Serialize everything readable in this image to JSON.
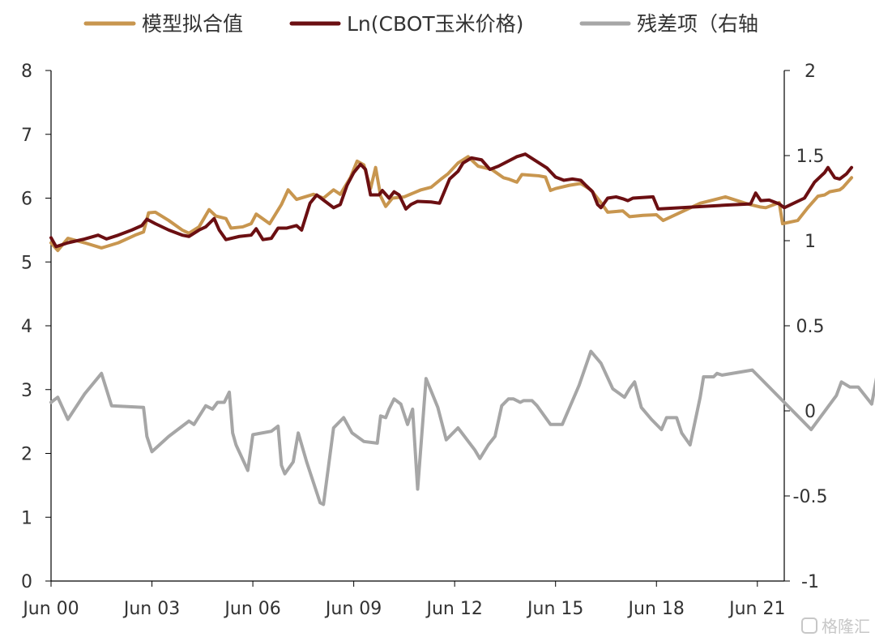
{
  "chart_data": {
    "type": "line",
    "legend": {
      "placement": "top",
      "items": [
        {
          "label": "模型拟合值",
          "color": "#c8964f"
        },
        {
          "label": "Ln(CBOT玉米价格)",
          "color": "#6b0f12"
        },
        {
          "label": "残差项（右轴",
          "color": "#a6a6a6"
        }
      ]
    },
    "x_axis": {
      "start_year": 2000.0,
      "end_year": 2021.8,
      "ticks": [
        {
          "year": 2000.0,
          "label": "Jun 00"
        },
        {
          "year": 2003.0,
          "label": "Jun 03"
        },
        {
          "year": 2006.0,
          "label": "Jun 06"
        },
        {
          "year": 2009.0,
          "label": "Jun 09"
        },
        {
          "year": 2012.0,
          "label": "Jun 12"
        },
        {
          "year": 2015.0,
          "label": "Jun 15"
        },
        {
          "year": 2018.0,
          "label": "Jun 18"
        },
        {
          "year": 2021.0,
          "label": "Jun 21"
        }
      ]
    },
    "y_axis_left": {
      "min": 0,
      "max": 8,
      "ticks": [
        "0",
        "1",
        "2",
        "3",
        "4",
        "5",
        "6",
        "7",
        "8"
      ]
    },
    "y_axis_right": {
      "min": -1,
      "max": 2,
      "ticks": [
        {
          "value": -1,
          "label": "-1"
        },
        {
          "value": -0.5,
          "label": "-0.5"
        },
        {
          "value": 0,
          "label": "0"
        },
        {
          "value": 0.5,
          "label": "0.5"
        },
        {
          "value": 1,
          "label": "1"
        },
        {
          "value": 1.5,
          "label": "1.5"
        },
        {
          "value": 2,
          "label": "2"
        }
      ]
    },
    "series": [
      {
        "name": "模型拟合值",
        "axis": "left",
        "color": "#c8964f",
        "points": [
          [
            2000.0,
            5.3
          ],
          [
            2000.2,
            5.18
          ],
          [
            2000.5,
            5.37
          ],
          [
            2001.0,
            5.3
          ],
          [
            2001.5,
            5.22
          ],
          [
            2002.0,
            5.3
          ],
          [
            2002.5,
            5.42
          ],
          [
            2002.75,
            5.47
          ],
          [
            2002.9,
            5.77
          ],
          [
            2003.1,
            5.78
          ],
          [
            2003.5,
            5.65
          ],
          [
            2003.9,
            5.5
          ],
          [
            2004.1,
            5.45
          ],
          [
            2004.4,
            5.55
          ],
          [
            2004.7,
            5.82
          ],
          [
            2004.9,
            5.72
          ],
          [
            2005.2,
            5.68
          ],
          [
            2005.35,
            5.53
          ],
          [
            2005.7,
            5.55
          ],
          [
            2005.95,
            5.6
          ],
          [
            2006.1,
            5.75
          ],
          [
            2006.5,
            5.6
          ],
          [
            2006.85,
            5.9
          ],
          [
            2007.05,
            6.13
          ],
          [
            2007.3,
            5.98
          ],
          [
            2007.8,
            6.06
          ],
          [
            2008.1,
            6.0
          ],
          [
            2008.4,
            6.13
          ],
          [
            2008.6,
            6.06
          ],
          [
            2008.9,
            6.32
          ],
          [
            2009.1,
            6.58
          ],
          [
            2009.3,
            6.52
          ],
          [
            2009.5,
            6.15
          ],
          [
            2009.65,
            6.48
          ],
          [
            2009.8,
            6.03
          ],
          [
            2009.95,
            5.87
          ],
          [
            2010.15,
            6.0
          ],
          [
            2010.5,
            6.02
          ],
          [
            2011.0,
            6.13
          ],
          [
            2011.3,
            6.17
          ],
          [
            2011.6,
            6.3
          ],
          [
            2011.8,
            6.38
          ],
          [
            2012.1,
            6.55
          ],
          [
            2012.4,
            6.65
          ],
          [
            2012.7,
            6.5
          ],
          [
            2013.1,
            6.45
          ],
          [
            2013.45,
            6.32
          ],
          [
            2013.6,
            6.3
          ],
          [
            2013.85,
            6.25
          ],
          [
            2014.0,
            6.37
          ],
          [
            2014.5,
            6.35
          ],
          [
            2014.7,
            6.33
          ],
          [
            2014.85,
            6.12
          ],
          [
            2015.0,
            6.15
          ],
          [
            2015.4,
            6.2
          ],
          [
            2015.75,
            6.23
          ],
          [
            2016.05,
            6.13
          ],
          [
            2016.35,
            5.93
          ],
          [
            2016.55,
            5.78
          ],
          [
            2017.0,
            5.8
          ],
          [
            2017.2,
            5.71
          ],
          [
            2017.6,
            5.73
          ],
          [
            2018.0,
            5.74
          ],
          [
            2018.2,
            5.65
          ],
          [
            2019.3,
            5.92
          ],
          [
            2020.05,
            6.02
          ],
          [
            2020.7,
            5.91
          ],
          [
            2021.1,
            5.86
          ],
          [
            2021.25,
            5.85
          ],
          [
            2021.65,
            5.93
          ],
          [
            2021.75,
            5.6
          ],
          [
            2022.2,
            5.65
          ],
          [
            2022.5,
            5.85
          ],
          [
            2022.8,
            6.03
          ],
          [
            2023.0,
            6.05
          ],
          [
            2023.15,
            6.1
          ],
          [
            2023.45,
            6.13
          ],
          [
            2023.55,
            6.17
          ],
          [
            2023.8,
            6.32
          ]
        ]
      },
      {
        "name": "Ln(CBOT玉米价格)",
        "axis": "left",
        "color": "#6b0f12",
        "points": [
          [
            2000.0,
            5.38
          ],
          [
            2000.15,
            5.24
          ],
          [
            2000.5,
            5.3
          ],
          [
            2001.0,
            5.36
          ],
          [
            2001.4,
            5.42
          ],
          [
            2001.65,
            5.36
          ],
          [
            2002.0,
            5.42
          ],
          [
            2002.4,
            5.5
          ],
          [
            2002.7,
            5.57
          ],
          [
            2002.85,
            5.67
          ],
          [
            2003.1,
            5.6
          ],
          [
            2003.5,
            5.5
          ],
          [
            2003.9,
            5.42
          ],
          [
            2004.1,
            5.4
          ],
          [
            2004.4,
            5.5
          ],
          [
            2004.6,
            5.55
          ],
          [
            2004.85,
            5.68
          ],
          [
            2005.0,
            5.5
          ],
          [
            2005.2,
            5.35
          ],
          [
            2005.6,
            5.4
          ],
          [
            2005.95,
            5.42
          ],
          [
            2006.1,
            5.52
          ],
          [
            2006.3,
            5.35
          ],
          [
            2006.55,
            5.37
          ],
          [
            2006.75,
            5.53
          ],
          [
            2007.0,
            5.53
          ],
          [
            2007.3,
            5.57
          ],
          [
            2007.45,
            5.5
          ],
          [
            2007.7,
            5.92
          ],
          [
            2007.9,
            6.05
          ],
          [
            2008.1,
            5.97
          ],
          [
            2008.4,
            5.85
          ],
          [
            2008.6,
            5.9
          ],
          [
            2008.8,
            6.2
          ],
          [
            2009.0,
            6.4
          ],
          [
            2009.2,
            6.53
          ],
          [
            2009.35,
            6.45
          ],
          [
            2009.5,
            6.05
          ],
          [
            2009.75,
            6.05
          ],
          [
            2009.85,
            6.12
          ],
          [
            2010.05,
            6.0
          ],
          [
            2010.2,
            6.1
          ],
          [
            2010.35,
            6.05
          ],
          [
            2010.55,
            5.83
          ],
          [
            2010.7,
            5.9
          ],
          [
            2010.9,
            5.95
          ],
          [
            2011.3,
            5.94
          ],
          [
            2011.55,
            5.92
          ],
          [
            2011.85,
            6.3
          ],
          [
            2012.1,
            6.42
          ],
          [
            2012.25,
            6.55
          ],
          [
            2012.5,
            6.63
          ],
          [
            2012.8,
            6.6
          ],
          [
            2013.05,
            6.45
          ],
          [
            2013.3,
            6.5
          ],
          [
            2013.85,
            6.65
          ],
          [
            2014.1,
            6.69
          ],
          [
            2014.75,
            6.47
          ],
          [
            2015.0,
            6.33
          ],
          [
            2015.25,
            6.28
          ],
          [
            2015.5,
            6.3
          ],
          [
            2015.75,
            6.28
          ],
          [
            2015.9,
            6.2
          ],
          [
            2016.1,
            6.1
          ],
          [
            2016.25,
            5.9
          ],
          [
            2016.35,
            5.85
          ],
          [
            2016.55,
            6.0
          ],
          [
            2016.8,
            6.02
          ],
          [
            2017.0,
            5.99
          ],
          [
            2017.15,
            5.96
          ],
          [
            2017.3,
            6.0
          ],
          [
            2017.9,
            6.02
          ],
          [
            2018.05,
            5.83
          ],
          [
            2020.05,
            5.89
          ],
          [
            2020.8,
            5.91
          ],
          [
            2020.95,
            6.08
          ],
          [
            2021.1,
            5.96
          ],
          [
            2021.35,
            5.97
          ],
          [
            2021.65,
            5.91
          ],
          [
            2021.8,
            5.85
          ],
          [
            2022.4,
            6.0
          ],
          [
            2022.7,
            6.25
          ],
          [
            2023.0,
            6.4
          ],
          [
            2023.1,
            6.48
          ],
          [
            2023.3,
            6.32
          ],
          [
            2023.45,
            6.3
          ],
          [
            2023.65,
            6.38
          ],
          [
            2023.8,
            6.48
          ]
        ]
      },
      {
        "name": "残差项（右轴",
        "axis": "right",
        "color": "#a6a6a6",
        "points": [
          [
            2000.0,
            0.05
          ],
          [
            2000.2,
            0.08
          ],
          [
            2000.5,
            -0.05
          ],
          [
            2001.0,
            0.1
          ],
          [
            2001.5,
            0.22
          ],
          [
            2001.8,
            0.03
          ],
          [
            2002.75,
            0.02
          ],
          [
            2002.85,
            -0.15
          ],
          [
            2003.0,
            -0.24
          ],
          [
            2003.5,
            -0.15
          ],
          [
            2004.1,
            -0.06
          ],
          [
            2004.25,
            -0.08
          ],
          [
            2004.6,
            0.03
          ],
          [
            2004.8,
            0.01
          ],
          [
            2004.95,
            0.05
          ],
          [
            2005.15,
            0.05
          ],
          [
            2005.3,
            0.11
          ],
          [
            2005.4,
            -0.13
          ],
          [
            2005.5,
            -0.2
          ],
          [
            2005.85,
            -0.35
          ],
          [
            2006.0,
            -0.14
          ],
          [
            2006.55,
            -0.12
          ],
          [
            2006.75,
            -0.09
          ],
          [
            2006.85,
            -0.32
          ],
          [
            2006.95,
            -0.37
          ],
          [
            2007.2,
            -0.3
          ],
          [
            2007.35,
            -0.13
          ],
          [
            2007.6,
            -0.3
          ],
          [
            2008.0,
            -0.54
          ],
          [
            2008.1,
            -0.55
          ],
          [
            2008.4,
            -0.1
          ],
          [
            2008.7,
            -0.04
          ],
          [
            2008.95,
            -0.13
          ],
          [
            2009.3,
            -0.18
          ],
          [
            2009.7,
            -0.19
          ],
          [
            2009.8,
            -0.03
          ],
          [
            2009.95,
            -0.04
          ],
          [
            2010.05,
            0.01
          ],
          [
            2010.2,
            0.07
          ],
          [
            2010.4,
            0.04
          ],
          [
            2010.6,
            -0.08
          ],
          [
            2010.75,
            0.01
          ],
          [
            2010.9,
            -0.46
          ],
          [
            2011.15,
            0.19
          ],
          [
            2011.5,
            0.02
          ],
          [
            2011.75,
            -0.17
          ],
          [
            2012.1,
            -0.1
          ],
          [
            2012.6,
            -0.23
          ],
          [
            2012.75,
            -0.28
          ],
          [
            2013.0,
            -0.2
          ],
          [
            2013.2,
            -0.15
          ],
          [
            2013.4,
            0.03
          ],
          [
            2013.6,
            0.07
          ],
          [
            2013.75,
            0.07
          ],
          [
            2013.95,
            0.05
          ],
          [
            2014.05,
            0.06
          ],
          [
            2014.3,
            0.06
          ],
          [
            2014.45,
            0.03
          ],
          [
            2014.85,
            -0.08
          ],
          [
            2015.2,
            -0.08
          ],
          [
            2015.7,
            0.15
          ],
          [
            2016.05,
            0.35
          ],
          [
            2016.35,
            0.28
          ],
          [
            2016.7,
            0.13
          ],
          [
            2017.05,
            0.08
          ],
          [
            2017.2,
            0.13
          ],
          [
            2017.35,
            0.17
          ],
          [
            2017.55,
            0.02
          ],
          [
            2017.85,
            -0.05
          ],
          [
            2018.15,
            -0.11
          ],
          [
            2018.3,
            -0.04
          ],
          [
            2018.6,
            -0.04
          ],
          [
            2018.75,
            -0.13
          ],
          [
            2019.0,
            -0.2
          ],
          [
            2019.3,
            0.08
          ],
          [
            2019.4,
            0.2
          ],
          [
            2019.7,
            0.2
          ],
          [
            2019.8,
            0.22
          ],
          [
            2019.95,
            0.21
          ],
          [
            2020.85,
            0.24
          ],
          [
            2021.05,
            0.2
          ],
          [
            2022.6,
            -0.11
          ],
          [
            2023.35,
            0.09
          ],
          [
            2023.5,
            0.17
          ],
          [
            2023.75,
            0.14
          ],
          [
            2024.0,
            0.14
          ],
          [
            2024.4,
            0.04
          ],
          [
            2024.55,
            0.2
          ],
          [
            2025.0,
            0.24
          ],
          [
            2025.2,
            0.26
          ],
          [
            2025.45,
            0.28
          ],
          [
            2025.65,
            0.28
          ],
          [
            2025.9,
            0.3
          ],
          [
            2026.0,
            0.37
          ],
          [
            2026.15,
            0.46
          ],
          [
            2026.3,
            0.28
          ],
          [
            2026.4,
            0.21
          ],
          [
            2026.6,
            0.14
          ],
          [
            2026.8,
            0.2
          ],
          [
            2027.0,
            0.18
          ],
          [
            2027.2,
            0.14
          ]
        ]
      }
    ]
  },
  "watermark": {
    "text": "格隆汇"
  }
}
